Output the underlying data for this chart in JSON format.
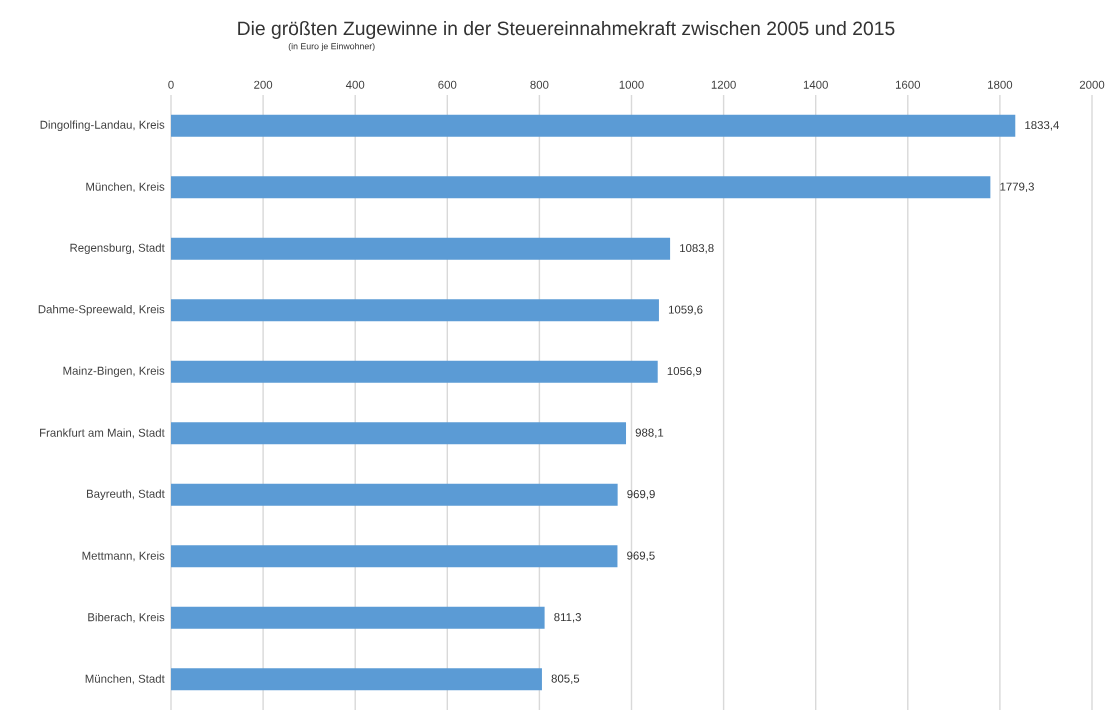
{
  "chart_data": {
    "type": "bar",
    "orientation": "horizontal",
    "title": "Die größten Zugewinne in der Steuereinnahmekraft zwischen 2005 und 2015",
    "subtitle": "(in Euro je Einwohner)",
    "categories": [
      "Dingolfing-Landau, Kreis",
      "München, Kreis",
      "Regensburg, Stadt",
      "Dahme-Spreewald, Kreis",
      "Mainz-Bingen, Kreis",
      "Frankfurt am Main, Stadt",
      "Bayreuth, Stadt",
      "Mettmann, Kreis",
      "Biberach, Kreis",
      "München, Stadt"
    ],
    "values": [
      1833.4,
      1779.3,
      1083.8,
      1059.6,
      1056.9,
      988.1,
      969.9,
      969.5,
      811.3,
      805.5
    ],
    "value_labels": [
      "1833,4",
      "1779,3",
      "1083,8",
      "1059,6",
      "1056,9",
      "988,1",
      "969,9",
      "969,5",
      "811,3",
      "805,5"
    ],
    "color": "#5b9bd5",
    "xlim": [
      0,
      2000
    ],
    "xticks": [
      0,
      200,
      400,
      600,
      800,
      1000,
      1200,
      1400,
      1600,
      1800,
      2000
    ],
    "grid": true
  }
}
